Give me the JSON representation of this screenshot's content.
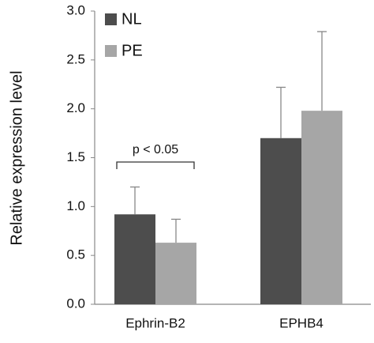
{
  "chart_data": {
    "type": "bar",
    "y_label": "Relative expression level",
    "categories": [
      "Ephrin-B2",
      "EPHB4"
    ],
    "series": [
      {
        "name": "NL",
        "color": "#4d4d4d",
        "values": [
          0.92,
          1.7
        ],
        "errors": [
          0.28,
          0.52
        ]
      },
      {
        "name": "PE",
        "color": "#a6a6a6",
        "values": [
          0.63,
          1.98
        ],
        "errors": [
          0.24,
          0.81
        ]
      }
    ],
    "annotation": "p < 0.05",
    "ylim": [
      0,
      3
    ],
    "yticks": [
      {
        "value": 0,
        "label": "0.0"
      },
      {
        "value": 0.5,
        "label": "0.5"
      },
      {
        "value": 1,
        "label": "1.0"
      },
      {
        "value": 1.5,
        "label": "1.5"
      },
      {
        "value": 2,
        "label": "2.0"
      },
      {
        "value": 2.5,
        "label": "2.5"
      },
      {
        "value": 3,
        "label": "3.0"
      }
    ],
    "grid": false
  }
}
